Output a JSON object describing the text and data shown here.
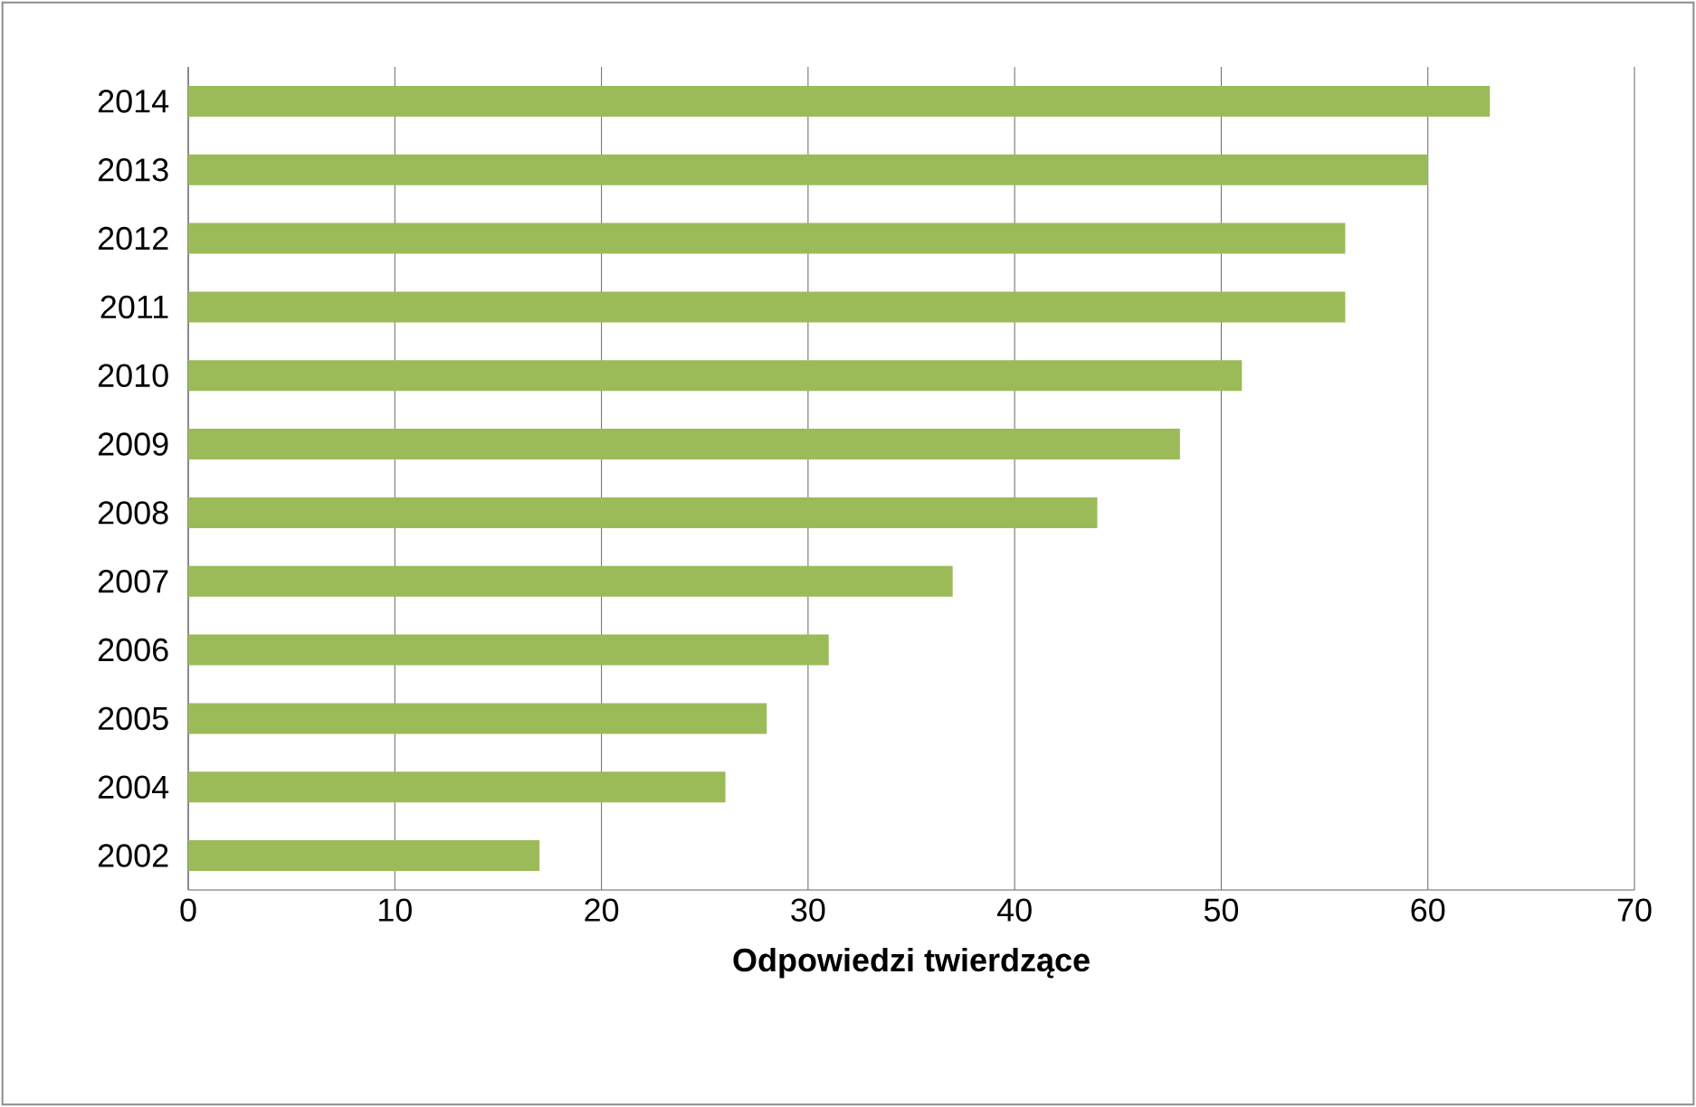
{
  "chart_data": {
    "type": "bar",
    "orientation": "horizontal",
    "xlabel": "Odpowiedzi twierdzące",
    "categories": [
      "2014",
      "2013",
      "2012",
      "2011",
      "2010",
      "2009",
      "2008",
      "2007",
      "2006",
      "2005",
      "2004",
      "2002"
    ],
    "values": [
      63,
      60,
      56,
      56,
      51,
      48,
      44,
      37,
      31,
      28,
      26,
      17
    ],
    "color": "#9bbb59",
    "xlim": [
      0,
      70
    ],
    "xticks": [
      0,
      10,
      20,
      30,
      40,
      50,
      60,
      70
    ],
    "grid": "x"
  }
}
